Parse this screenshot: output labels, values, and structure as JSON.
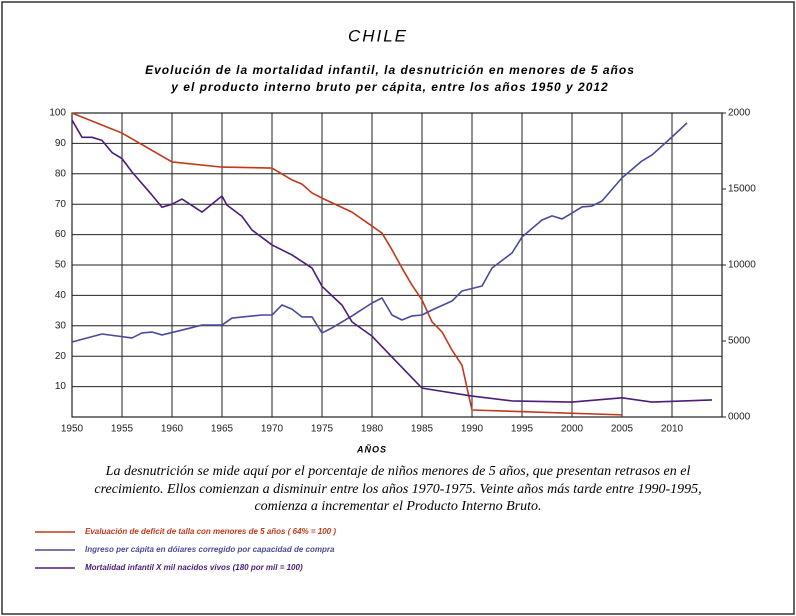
{
  "chart_data": {
    "type": "line",
    "title": "CHILE",
    "subtitle": [
      "Evolución de la mortalidad infantil, la desnutrición en menores de 5 años",
      "y el producto interno bruto per cápita, entre los años 1950 y 2012"
    ],
    "x_label": "AÑOS",
    "caption": [
      "La desnutrición se mide aquí por el porcentaje de niños menores de 5 años, que presentan retrasos en el",
      "crecimiento. Ellos comienzan a disminuir entre los años 1970-1975. Veinte años más tarde entre 1990-1995,",
      "comienza a incrementar el Producto Interno Bruto."
    ],
    "xlim": [
      1950,
      2015
    ],
    "xticks": [
      1950,
      1955,
      1960,
      1965,
      1970,
      1975,
      1980,
      1985,
      1990,
      1995,
      2000,
      2005,
      2010
    ],
    "ylim": [
      0,
      100
    ],
    "yticks": [
      10,
      20,
      30,
      40,
      50,
      60,
      70,
      80,
      90,
      100
    ],
    "y2lim": [
      0,
      20000
    ],
    "y2ticks": [
      {
        "value": 0,
        "label": "0000"
      },
      5000,
      10000,
      15000,
      {
        "value": 20000,
        "label": "2000"
      }
    ],
    "grid": true,
    "series": [
      {
        "name": "Evaluación de deficit de talla con menores de 5 años ( 64% = 100 )",
        "color": "#c0391b",
        "x": [
          1950,
          1955,
          1960,
          1965,
          1970,
          1972,
          1973,
          1974,
          1975,
          1978,
          1980,
          1981,
          1982,
          1983,
          1984,
          1985,
          1986,
          1987,
          1988,
          1989,
          1990,
          2005
        ],
        "values": [
          100,
          93.4,
          83.9,
          82.2,
          81.9,
          78,
          76.6,
          73.7,
          72,
          67.4,
          62.8,
          60.5,
          55,
          49,
          43.4,
          38.5,
          31.3,
          28,
          22,
          17,
          2.3,
          0.7
        ]
      },
      {
        "name": "Ingreso per cápita en dóiares corregido por capacidad de compra",
        "color": "#4a4a9c",
        "axis": "y2",
        "x": [
          1950,
          1953,
          1956,
          1957,
          1958,
          1959,
          1961,
          1963,
          1965,
          1966,
          1969,
          1970,
          1971,
          1972,
          1973,
          1974,
          1975,
          1976,
          1978,
          1980,
          1981,
          1982,
          1983,
          1984,
          1985,
          1986,
          1988,
          1989,
          1991,
          1992,
          1994,
          1995,
          1997,
          1998,
          1999,
          2000,
          2001,
          2002,
          2003,
          2005,
          2007,
          2008,
          2010,
          2011.5
        ],
        "values": [
          4935,
          5460,
          5200,
          5530,
          5590,
          5400,
          5720,
          6050,
          6050,
          6510,
          6710,
          6710,
          7370,
          7100,
          6580,
          6580,
          5530,
          5860,
          6650,
          7500,
          7830,
          6710,
          6380,
          6650,
          6710,
          7040,
          7630,
          8290,
          8620,
          9800,
          10790,
          11840,
          12960,
          13230,
          13030,
          13420,
          13820,
          13880,
          14210,
          15730,
          16850,
          17240,
          18420,
          19350
        ]
      },
      {
        "name": "Mortalidad infantil X mil nacidos vivos (180 por mil = 100)",
        "color": "#4b1c7a",
        "x": [
          1950,
          1951,
          1952,
          1953,
          1954,
          1955,
          1956,
          1958,
          1959,
          1960,
          1961,
          1963,
          1965,
          1965.5,
          1967,
          1968,
          1970,
          1972,
          1974,
          1975,
          1977,
          1978,
          1980,
          1982,
          1985,
          1990,
          1994,
          2000,
          2005,
          2008,
          2014
        ],
        "values": [
          97.7,
          92,
          92,
          91,
          87,
          85,
          80.6,
          73,
          69,
          70,
          71.7,
          67.4,
          72.7,
          69.7,
          66,
          61.5,
          56.6,
          53.3,
          49,
          43,
          36.8,
          31.3,
          26.6,
          19.7,
          9.5,
          6.9,
          5.3,
          4.9,
          6.3,
          4.9,
          5.6
        ]
      }
    ]
  }
}
